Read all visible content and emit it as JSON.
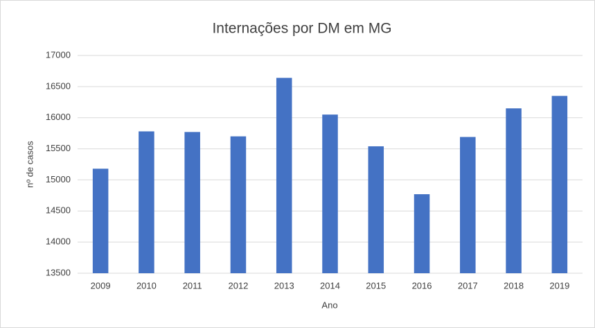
{
  "chart_data": {
    "type": "bar",
    "title": "Internações por DM em MG",
    "x_label": "Ano",
    "y_label": "nº de casos",
    "categories": [
      "2009",
      "2010",
      "2011",
      "2012",
      "2013",
      "2014",
      "2015",
      "2016",
      "2017",
      "2018",
      "2019"
    ],
    "values": [
      15180,
      15780,
      15770,
      15700,
      16640,
      16050,
      15540,
      14770,
      15690,
      16150,
      16350
    ],
    "color": "#4472c4",
    "ylim": [
      13500,
      17000
    ],
    "yticks": [
      13500,
      14000,
      14500,
      15000,
      15500,
      16000,
      16500,
      17000
    ],
    "grid": true
  }
}
